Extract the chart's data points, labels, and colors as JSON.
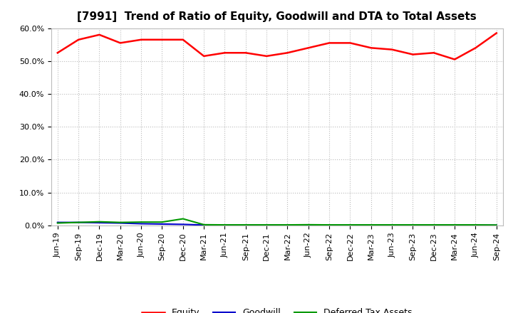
{
  "title": "[7991]  Trend of Ratio of Equity, Goodwill and DTA to Total Assets",
  "x_labels": [
    "Jun-19",
    "Sep-19",
    "Dec-19",
    "Mar-20",
    "Jun-20",
    "Sep-20",
    "Dec-20",
    "Mar-21",
    "Jun-21",
    "Sep-21",
    "Dec-21",
    "Mar-22",
    "Jun-22",
    "Sep-22",
    "Dec-22",
    "Mar-23",
    "Jun-23",
    "Sep-23",
    "Dec-23",
    "Mar-24",
    "Jun-24",
    "Sep-24"
  ],
  "equity": [
    52.5,
    56.5,
    58.0,
    55.5,
    56.5,
    56.5,
    56.5,
    51.5,
    52.5,
    52.5,
    51.5,
    52.5,
    54.0,
    55.5,
    55.5,
    54.0,
    53.5,
    52.0,
    52.5,
    50.5,
    54.0,
    58.5
  ],
  "goodwill": [
    0.9,
    0.9,
    0.8,
    0.7,
    0.5,
    0.4,
    0.3,
    0.1,
    0.05,
    0.05,
    0.05,
    0.05,
    0.05,
    0.05,
    0.05,
    0.05,
    0.05,
    0.05,
    0.05,
    0.05,
    0.05,
    0.05
  ],
  "dta": [
    0.7,
    0.9,
    1.1,
    0.9,
    1.0,
    1.0,
    2.0,
    0.2,
    0.15,
    0.15,
    0.15,
    0.15,
    0.2,
    0.15,
    0.15,
    0.15,
    0.15,
    0.15,
    0.15,
    0.15,
    0.15,
    0.1
  ],
  "equity_color": "#FF0000",
  "goodwill_color": "#0000CC",
  "dta_color": "#009900",
  "ylim": [
    0,
    60
  ],
  "yticks": [
    0,
    10,
    20,
    30,
    40,
    50,
    60
  ],
  "bg_color": "#FFFFFF",
  "grid_color": "#BBBBBB",
  "title_fontsize": 11,
  "tick_fontsize": 8,
  "legend_labels": [
    "Equity",
    "Goodwill",
    "Deferred Tax Assets"
  ]
}
